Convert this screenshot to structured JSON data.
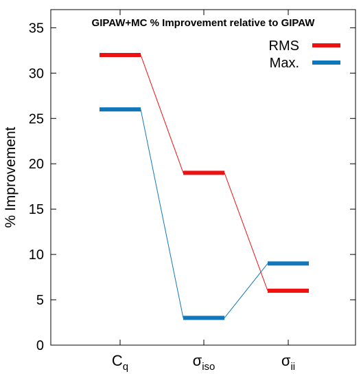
{
  "chart_data": {
    "type": "line",
    "title": "GIPAW+MC % Improvement relative to GIPAW",
    "ylabel": "% Improvement",
    "xlabel": "",
    "ylim": [
      0,
      37
    ],
    "yticks": [
      0,
      5,
      10,
      15,
      20,
      25,
      30,
      35
    ],
    "categories": [
      {
        "base": "C",
        "sub": "q"
      },
      {
        "base": "σ",
        "sub": "iso"
      },
      {
        "base": "σ",
        "sub": "ii"
      }
    ],
    "series": [
      {
        "name": "RMS",
        "values": [
          32,
          19,
          6
        ],
        "color": "#ee1111"
      },
      {
        "name": "Max.",
        "values": [
          26,
          3,
          9
        ],
        "color": "#1177bb"
      }
    ],
    "legend": "top-right",
    "grid": false
  }
}
